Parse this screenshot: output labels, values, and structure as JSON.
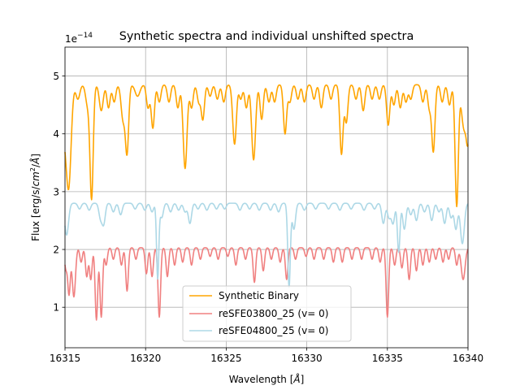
{
  "chart_data": {
    "type": "line",
    "title": "Synthetic spectra and individual unshifted spectra",
    "xlabel_prefix": "Wavelength [",
    "xlabel_unit": "Å",
    "xlabel_suffix": "]",
    "ylabel_prefix": "Flux [erg/s/",
    "ylabel_cm": "cm",
    "ylabel_sup": "2",
    "ylabel_sep": "/",
    "ylabel_unit": "Å",
    "ylabel_suffix": "]",
    "offset_base": "1e",
    "offset_exp": "−14",
    "xlim": [
      16315,
      16340
    ],
    "ylim": [
      0.3,
      5.5
    ],
    "xticks": [
      16315,
      16320,
      16325,
      16330,
      16335,
      16340
    ],
    "xtick_labels": [
      "16315",
      "16320",
      "16325",
      "16330",
      "16335",
      "16340"
    ],
    "yticks": [
      1,
      2,
      3,
      4,
      5
    ],
    "ytick_labels": [
      "1",
      "2",
      "3",
      "4",
      "5"
    ],
    "grid": true,
    "legend_position": "lower-center",
    "series": [
      {
        "name": "Synthetic Binary",
        "color": "#ffa500",
        "continuum": 4.85,
        "lines": [
          [
            16315.0,
            0.9,
            0.22
          ],
          [
            16315.25,
            1.3,
            0.14
          ],
          [
            16315.8,
            0.25,
            0.12
          ],
          [
            16316.4,
            0.35,
            0.12
          ],
          [
            16316.65,
            1.95,
            0.1
          ],
          [
            16317.25,
            0.45,
            0.12
          ],
          [
            16317.7,
            0.4,
            0.1
          ],
          [
            16318.05,
            0.3,
            0.1
          ],
          [
            16318.6,
            0.6,
            0.12
          ],
          [
            16318.85,
            1.15,
            0.1
          ],
          [
            16319.5,
            0.2,
            0.15
          ],
          [
            16320.15,
            0.4,
            0.1
          ],
          [
            16320.45,
            0.75,
            0.1
          ],
          [
            16320.85,
            0.3,
            0.1
          ],
          [
            16321.45,
            0.3,
            0.1
          ],
          [
            16322.0,
            0.4,
            0.1
          ],
          [
            16322.45,
            1.45,
            0.12
          ],
          [
            16322.85,
            0.4,
            0.1
          ],
          [
            16323.3,
            0.3,
            0.1
          ],
          [
            16323.55,
            0.6,
            0.1
          ],
          [
            16324.0,
            0.2,
            0.1
          ],
          [
            16324.45,
            0.25,
            0.1
          ],
          [
            16324.85,
            0.3,
            0.1
          ],
          [
            16325.45,
            0.4,
            0.1
          ],
          [
            16325.55,
            0.75,
            0.1
          ],
          [
            16325.9,
            0.25,
            0.1
          ],
          [
            16326.25,
            0.4,
            0.1
          ],
          [
            16326.7,
            1.3,
            0.12
          ],
          [
            16327.2,
            0.6,
            0.1
          ],
          [
            16327.65,
            0.3,
            0.1
          ],
          [
            16328.0,
            0.3,
            0.1
          ],
          [
            16328.65,
            0.85,
            0.1
          ],
          [
            16328.95,
            0.3,
            0.1
          ],
          [
            16329.45,
            0.25,
            0.1
          ],
          [
            16329.85,
            0.3,
            0.1
          ],
          [
            16330.45,
            0.25,
            0.1
          ],
          [
            16330.9,
            0.4,
            0.1
          ],
          [
            16331.5,
            0.25,
            0.1
          ],
          [
            16332.15,
            1.2,
            0.1
          ],
          [
            16332.45,
            0.65,
            0.1
          ],
          [
            16333.05,
            0.25,
            0.1
          ],
          [
            16333.5,
            0.45,
            0.1
          ],
          [
            16334.05,
            0.25,
            0.1
          ],
          [
            16334.5,
            0.25,
            0.1
          ],
          [
            16335.05,
            0.7,
            0.1
          ],
          [
            16335.4,
            0.35,
            0.1
          ],
          [
            16335.8,
            0.4,
            0.1
          ],
          [
            16336.15,
            0.3,
            0.1
          ],
          [
            16336.45,
            0.25,
            0.1
          ],
          [
            16337.2,
            0.3,
            0.1
          ],
          [
            16337.6,
            0.4,
            0.1
          ],
          [
            16337.85,
            1.15,
            0.1
          ],
          [
            16338.4,
            0.3,
            0.1
          ],
          [
            16338.85,
            0.35,
            0.1
          ],
          [
            16339.3,
            2.1,
            0.1
          ],
          [
            16339.75,
            0.75,
            0.15
          ],
          [
            16340.0,
            0.85,
            0.1
          ]
        ]
      },
      {
        "name": "reSFE03800_25 (v= 0)",
        "color": "#f08080",
        "continuum": 2.03,
        "lines": [
          [
            16315.05,
            0.35,
            0.08
          ],
          [
            16315.25,
            0.8,
            0.08
          ],
          [
            16315.55,
            0.85,
            0.1
          ],
          [
            16316.0,
            0.25,
            0.08
          ],
          [
            16316.35,
            0.5,
            0.08
          ],
          [
            16316.6,
            0.55,
            0.08
          ],
          [
            16316.95,
            1.25,
            0.08
          ],
          [
            16317.25,
            1.2,
            0.08
          ],
          [
            16317.55,
            0.3,
            0.08
          ],
          [
            16318.0,
            0.2,
            0.08
          ],
          [
            16318.5,
            0.3,
            0.08
          ],
          [
            16318.85,
            0.75,
            0.08
          ],
          [
            16319.4,
            0.2,
            0.08
          ],
          [
            16320.05,
            0.45,
            0.08
          ],
          [
            16320.4,
            0.5,
            0.08
          ],
          [
            16320.85,
            1.2,
            0.08
          ],
          [
            16321.35,
            0.5,
            0.08
          ],
          [
            16321.8,
            0.3,
            0.08
          ],
          [
            16322.3,
            0.25,
            0.08
          ],
          [
            16322.85,
            0.3,
            0.08
          ],
          [
            16323.4,
            0.2,
            0.08
          ],
          [
            16324.0,
            0.15,
            0.08
          ],
          [
            16324.5,
            0.2,
            0.08
          ],
          [
            16325.1,
            0.15,
            0.08
          ],
          [
            16325.6,
            0.3,
            0.08
          ],
          [
            16326.2,
            0.2,
            0.08
          ],
          [
            16326.75,
            0.6,
            0.08
          ],
          [
            16327.3,
            0.4,
            0.08
          ],
          [
            16327.8,
            0.2,
            0.08
          ],
          [
            16328.35,
            0.25,
            0.08
          ],
          [
            16328.75,
            0.55,
            0.08
          ],
          [
            16329.3,
            0.2,
            0.08
          ],
          [
            16329.95,
            0.15,
            0.08
          ],
          [
            16330.45,
            0.2,
            0.08
          ],
          [
            16331.05,
            0.2,
            0.08
          ],
          [
            16331.65,
            0.25,
            0.08
          ],
          [
            16332.2,
            0.25,
            0.08
          ],
          [
            16332.8,
            0.2,
            0.08
          ],
          [
            16333.4,
            0.2,
            0.08
          ],
          [
            16334.05,
            0.2,
            0.08
          ],
          [
            16334.55,
            0.25,
            0.08
          ],
          [
            16335.0,
            1.2,
            0.08
          ],
          [
            16335.45,
            0.3,
            0.08
          ],
          [
            16335.9,
            0.35,
            0.08
          ],
          [
            16336.35,
            0.55,
            0.08
          ],
          [
            16336.8,
            0.4,
            0.08
          ],
          [
            16337.2,
            0.3,
            0.08
          ],
          [
            16337.6,
            0.25,
            0.08
          ],
          [
            16338.0,
            0.2,
            0.08
          ],
          [
            16338.45,
            0.25,
            0.08
          ],
          [
            16338.8,
            0.2,
            0.08
          ],
          [
            16339.3,
            0.3,
            0.08
          ],
          [
            16339.7,
            0.55,
            0.12
          ]
        ]
      },
      {
        "name": "reSFE04800_25 (v= 0)",
        "color": "#add8e6",
        "continuum": 2.8,
        "lines": [
          [
            16315.1,
            0.55,
            0.12
          ],
          [
            16315.9,
            0.1,
            0.1
          ],
          [
            16316.5,
            0.12,
            0.1
          ],
          [
            16317.2,
            0.25,
            0.1
          ],
          [
            16317.4,
            0.35,
            0.1
          ],
          [
            16318.0,
            0.15,
            0.1
          ],
          [
            16318.45,
            0.2,
            0.1
          ],
          [
            16319.35,
            0.1,
            0.1
          ],
          [
            16319.95,
            0.12,
            0.1
          ],
          [
            16320.4,
            0.15,
            0.1
          ],
          [
            16320.75,
            1.3,
            0.07
          ],
          [
            16321.0,
            0.25,
            0.1
          ],
          [
            16321.55,
            0.15,
            0.1
          ],
          [
            16322.05,
            0.12,
            0.1
          ],
          [
            16322.45,
            0.15,
            0.1
          ],
          [
            16322.75,
            0.35,
            0.1
          ],
          [
            16323.25,
            0.1,
            0.1
          ],
          [
            16323.8,
            0.12,
            0.1
          ],
          [
            16324.4,
            0.1,
            0.1
          ],
          [
            16324.9,
            0.1,
            0.1
          ],
          [
            16325.85,
            0.12,
            0.1
          ],
          [
            16326.45,
            0.1,
            0.1
          ],
          [
            16327.05,
            0.12,
            0.1
          ],
          [
            16327.75,
            0.12,
            0.1
          ],
          [
            16328.25,
            0.15,
            0.1
          ],
          [
            16328.9,
            1.45,
            0.08
          ],
          [
            16329.2,
            0.45,
            0.1
          ],
          [
            16329.85,
            0.12,
            0.1
          ],
          [
            16330.55,
            0.1,
            0.1
          ],
          [
            16331.35,
            0.1,
            0.1
          ],
          [
            16332.05,
            0.12,
            0.1
          ],
          [
            16332.75,
            0.1,
            0.1
          ],
          [
            16333.55,
            0.12,
            0.1
          ],
          [
            16334.2,
            0.1,
            0.1
          ],
          [
            16334.75,
            0.35,
            0.1
          ],
          [
            16335.1,
            0.25,
            0.1
          ],
          [
            16335.35,
            0.35,
            0.1
          ],
          [
            16335.7,
            0.85,
            0.08
          ],
          [
            16336.05,
            0.45,
            0.1
          ],
          [
            16336.45,
            0.2,
            0.1
          ],
          [
            16336.8,
            0.3,
            0.1
          ],
          [
            16337.3,
            0.15,
            0.1
          ],
          [
            16337.75,
            0.3,
            0.1
          ],
          [
            16338.2,
            0.15,
            0.1
          ],
          [
            16338.55,
            0.35,
            0.1
          ],
          [
            16338.95,
            0.25,
            0.1
          ],
          [
            16339.25,
            0.45,
            0.1
          ],
          [
            16339.65,
            0.7,
            0.12
          ]
        ]
      }
    ]
  }
}
